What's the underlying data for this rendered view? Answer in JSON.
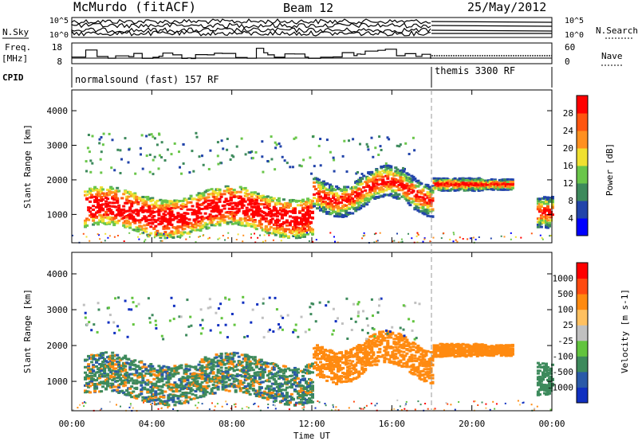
{
  "header": {
    "station": "McMurdo (fitACF)",
    "beam": "Beam 12",
    "date": "25/May/2012"
  },
  "left_labels": {
    "nsky": "N.Sky",
    "freq": "Freq.",
    "freq_unit": "[MHz]",
    "cpid": "CPID"
  },
  "right_labels": {
    "nsearch": "N.Search",
    "nave": "Nave"
  },
  "cpid_bar": {
    "segments": [
      {
        "label": "normalsound (fast) 157 RF",
        "start_hour": 0
      },
      {
        "label": "themis 3300 RF",
        "start_hour": 18
      }
    ]
  },
  "chart_data": [
    {
      "type": "line",
      "name": "noise",
      "left_ticks": [
        "10^5",
        "10^0"
      ],
      "right_ticks": [
        "10^5",
        "10^0"
      ],
      "xlim": [
        0,
        24
      ]
    },
    {
      "type": "line",
      "name": "frequency",
      "left_ticks": [
        "18",
        "8"
      ],
      "right_ticks": [
        "60",
        "0"
      ],
      "ylim_left": [
        8,
        18
      ],
      "ylim_right": [
        0,
        60
      ],
      "xlim": [
        0,
        24
      ]
    },
    {
      "type": "heatmap",
      "name": "power",
      "xlabel": "",
      "ylabel": "Slant Range [km]",
      "xlim": [
        0,
        24
      ],
      "ylim": [
        180,
        4600
      ],
      "yticks": [
        1000,
        2000,
        3000,
        4000
      ],
      "colorbar": {
        "label": "Power [dB]",
        "ticks": [
          "4",
          "8",
          "12",
          "16",
          "20",
          "24",
          "28"
        ],
        "colors": [
          "#0000ff",
          "#2244aa",
          "#3d8a5c",
          "#6ac64a",
          "#f0e030",
          "#ff9020",
          "#ff5510",
          "#ff0000"
        ]
      }
    },
    {
      "type": "heatmap",
      "name": "velocity",
      "xlabel": "Time UT",
      "ylabel": "Slant Range [km]",
      "xlim": [
        0,
        24
      ],
      "ylim": [
        180,
        4600
      ],
      "yticks": [
        1000,
        2000,
        3000,
        4000
      ],
      "xticks": [
        "00:00",
        "04:00",
        "08:00",
        "12:00",
        "16:00",
        "20:00",
        "00:00"
      ],
      "xtick_hours": [
        0,
        4,
        8,
        12,
        16,
        20,
        24
      ],
      "colorbar": {
        "label": "Velocity [m s-1]",
        "ticks": [
          "1000",
          "500",
          "100",
          "25",
          "-25",
          "-100",
          "-500",
          "-1000"
        ],
        "colors": [
          "#1030c0",
          "#2a5aa8",
          "#3d8a5c",
          "#62c43e",
          "#c0c0c0",
          "#ffc060",
          "#ff8a10",
          "#ff4a10",
          "#ff0000"
        ]
      }
    }
  ]
}
